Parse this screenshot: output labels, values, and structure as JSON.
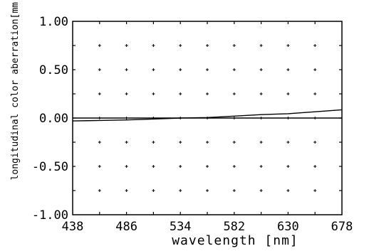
{
  "chart_data": {
    "type": "line",
    "xlabel": "wavelength [nm]",
    "ylabel": "longitudinal color aberration[mm",
    "xlim": [
      438,
      678
    ],
    "ylim": [
      -1.0,
      1.0
    ],
    "x_ticks": [
      438,
      486,
      534,
      582,
      630,
      678
    ],
    "x_tick_labels": [
      "438",
      "486",
      "534",
      "582",
      "630",
      "678"
    ],
    "y_ticks": [
      1.0,
      0.5,
      0.0,
      -0.5,
      -1.0
    ],
    "y_tick_labels": [
      "1.00",
      "0.50",
      "0.00",
      "-0.50",
      "-1.00"
    ],
    "x_minor_step": 24,
    "y_minor_step": 0.25,
    "grid": "dotted-crosses",
    "colors": {
      "line": "#000000",
      "frame": "#000000",
      "background": "#ffffff"
    },
    "series": [
      {
        "x": [
          438,
          462,
          486,
          510,
          534,
          558,
          582,
          606,
          630,
          654,
          678
        ],
        "y": [
          -0.03,
          -0.025,
          -0.02,
          -0.01,
          0.0,
          0.005,
          0.02,
          0.035,
          0.045,
          0.065,
          0.085
        ]
      },
      {
        "x": [
          438,
          678
        ],
        "y": [
          0.0,
          0.0
        ]
      }
    ]
  }
}
